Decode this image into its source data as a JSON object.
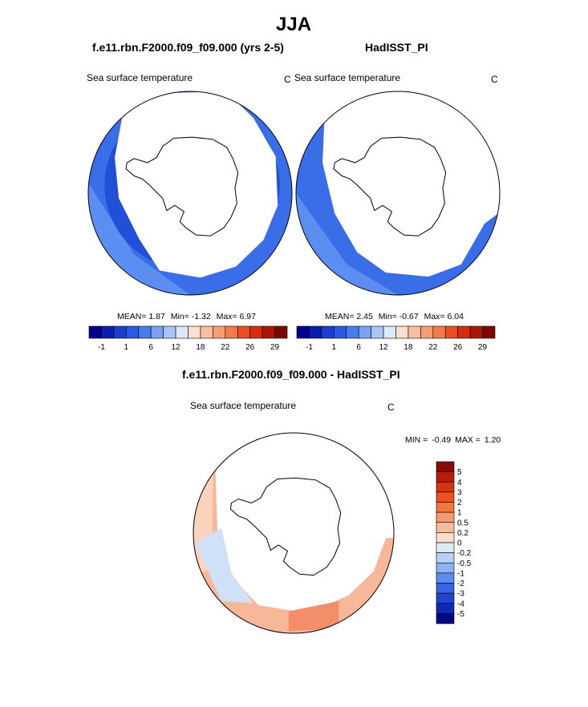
{
  "page": {
    "title": "JJA",
    "panel_left_title": "f.e11.rbn.F2000.f09_f09.000 (yrs 2-5)",
    "panel_right_title": "HadISST_PI",
    "diff_title": "f.e11.rbn.F2000.f09_f09.000 - HadISST_PI"
  },
  "colors": {
    "sea_ice": "#ffffff",
    "coastline": "#000000",
    "ocean_main": "#3a6ee8",
    "ocean_light": "#5b8ef0",
    "ocean_dark": "#2050d8",
    "diff_warm": "#f7b89a",
    "diff_warm2": "#fbd3bd",
    "diff_warm3": "#f48e6a",
    "diff_cool": "#cfe0f7"
  },
  "chart_data": [
    {
      "type": "heatmap",
      "projection": "south-polar-stereographic",
      "title": "f.e11.rbn.F2000.f09_f09.000 (yrs 2-5)",
      "variable": "Sea surface temperature",
      "units": "C",
      "stats": {
        "mean_label": "MEAN=",
        "mean": "1.87",
        "min_label": "Min=",
        "min": "-1.32",
        "max_label": "Max=",
        "max": "6.97"
      },
      "colorbar": {
        "orientation": "horizontal",
        "levels": [
          "-1",
          "1",
          "6",
          "12",
          "18",
          "22",
          "26",
          "29"
        ],
        "colors": [
          "#00008b",
          "#0a1fb0",
          "#1a3fd0",
          "#2b5ae6",
          "#4a7aef",
          "#7aa1f4",
          "#a9c4f7",
          "#dce8fb",
          "#fbe0cf",
          "#f9c0a0",
          "#f69f77",
          "#f27a4d",
          "#ea4f24",
          "#d42c0c",
          "#ad1505",
          "#7d0602"
        ]
      }
    },
    {
      "type": "heatmap",
      "projection": "south-polar-stereographic",
      "title": "HadISST_PI",
      "variable": "Sea surface temperature",
      "units": "C",
      "stats": {
        "mean_label": "MEAN=",
        "mean": "2.45",
        "min_label": "Min=",
        "min": "-0.67",
        "max_label": "Max=",
        "max": "6.04"
      },
      "colorbar": {
        "orientation": "horizontal",
        "levels": [
          "-1",
          "1",
          "6",
          "12",
          "18",
          "22",
          "26",
          "29"
        ],
        "colors": [
          "#00008b",
          "#0a1fb0",
          "#1a3fd0",
          "#2b5ae6",
          "#4a7aef",
          "#7aa1f4",
          "#a9c4f7",
          "#dce8fb",
          "#fbe0cf",
          "#f9c0a0",
          "#f69f77",
          "#f27a4d",
          "#ea4f24",
          "#d42c0c",
          "#ad1505",
          "#7d0602"
        ]
      }
    },
    {
      "type": "heatmap",
      "projection": "south-polar-stereographic",
      "title": "f.e11.rbn.F2000.f09_f09.000 - HadISST_PI",
      "variable": "Sea surface temperature",
      "units": "C",
      "stats": {
        "min_label": "MIN =",
        "min": "-0.49",
        "max_label": "MAX =",
        "max": "1.20"
      },
      "colorbar": {
        "orientation": "vertical",
        "levels": [
          "5",
          "4",
          "3",
          "2",
          "1",
          "0.5",
          "0.2",
          "0",
          "-0.2",
          "-0.5",
          "-1",
          "-2",
          "-3",
          "-4",
          "-5"
        ],
        "colors": [
          "#8a0a05",
          "#b81c0a",
          "#d8320f",
          "#ee5120",
          "#f2753f",
          "#f59a6f",
          "#f8bb9b",
          "#fcdcca",
          "#dce9f7",
          "#b8d0f4",
          "#8fb1f1",
          "#5f8bec",
          "#3864e3",
          "#1f45cf",
          "#0f2aaa",
          "#000a80"
        ]
      }
    }
  ]
}
